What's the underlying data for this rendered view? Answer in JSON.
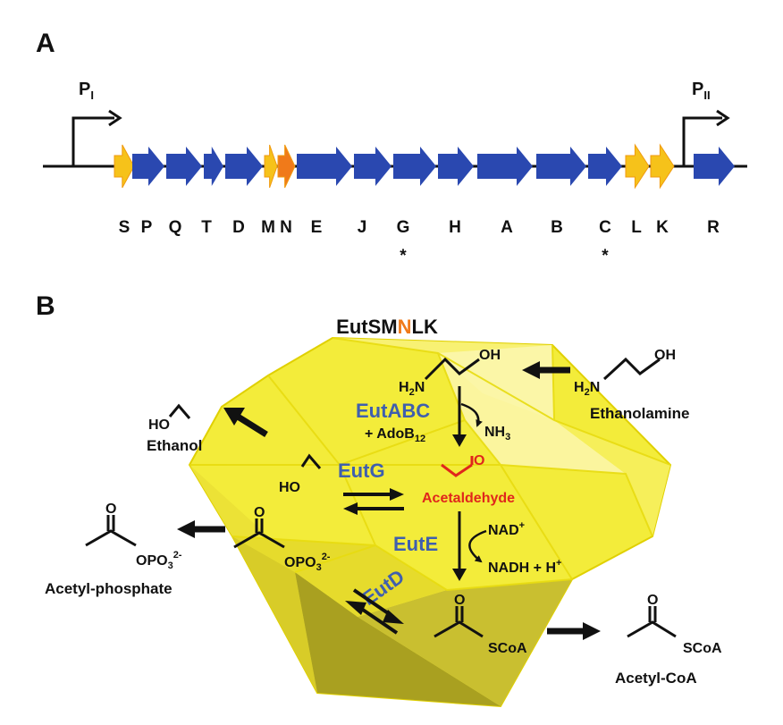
{
  "panel_a": {
    "label": "A",
    "promoters": [
      {
        "main": "P",
        "sub": "I"
      },
      {
        "main": "P",
        "sub": "II"
      }
    ],
    "genes": [
      {
        "letter": "S",
        "kind": "shell"
      },
      {
        "letter": "P",
        "kind": "enzyme"
      },
      {
        "letter": "Q",
        "kind": "enzyme"
      },
      {
        "letter": "T",
        "kind": "enzyme"
      },
      {
        "letter": "D",
        "kind": "enzyme"
      },
      {
        "letter": "M",
        "kind": "shell"
      },
      {
        "letter": "N",
        "kind": "vertex"
      },
      {
        "letter": "E",
        "kind": "enzyme"
      },
      {
        "letter": "J",
        "kind": "enzyme"
      },
      {
        "letter": "G",
        "kind": "enzyme",
        "essential_mark": "*"
      },
      {
        "letter": "H",
        "kind": "enzyme"
      },
      {
        "letter": "A",
        "kind": "enzyme"
      },
      {
        "letter": "B",
        "kind": "enzyme"
      },
      {
        "letter": "C",
        "kind": "enzyme",
        "essential_mark": "*"
      },
      {
        "letter": "L",
        "kind": "shell"
      },
      {
        "letter": "K",
        "kind": "shell"
      },
      {
        "letter": "R",
        "kind": "enzyme"
      }
    ],
    "colors": {
      "enzyme": "#2a48b0",
      "shell": "#f6c21a",
      "vertex": "#f07a1a"
    }
  },
  "panel_b": {
    "label": "B",
    "title": {
      "pre": "EutSM",
      "highlight": "N",
      "post": "LK"
    },
    "enzymes": {
      "abc": "EutABC",
      "g": "EutG",
      "e": "EutE",
      "d": "EutD"
    },
    "cofactors": {
      "adob12_main": "+ AdoB",
      "adob12_sub": "12",
      "nh3_main": "NH",
      "nh3_sub": "3",
      "nad": "NAD",
      "nad_sup": "+",
      "nadh": "NADH + H",
      "nadh_sup": "+"
    },
    "compounds": {
      "ethanolamine": "Ethanolamine",
      "acetaldehyde": "Acetaldehyde",
      "ethanol": "Ethanol",
      "acetyl_phosphate": "Acetyl-phosphate",
      "acetyl_coa": "Acetyl-CoA"
    },
    "atoms": {
      "oh": "OH",
      "ho": "HO",
      "h2n_main": "H",
      "h2n_sub": "2",
      "h2n_tail": "N",
      "o": "O",
      "opo3_main": "OPO",
      "opo3_sub": "3",
      "opo3_sup": "2-",
      "scoa": "SCoA"
    },
    "colors": {
      "enzyme_text": "#3f5fae",
      "acetaldehyde": "#e0261c",
      "shell_fill": "#f2ea2a",
      "highlight": "#f07a1a"
    }
  }
}
